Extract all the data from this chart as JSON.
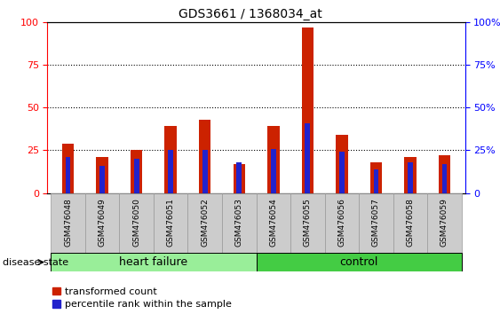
{
  "title": "GDS3661 / 1368034_at",
  "categories": [
    "GSM476048",
    "GSM476049",
    "GSM476050",
    "GSM476051",
    "GSM476052",
    "GSM476053",
    "GSM476054",
    "GSM476055",
    "GSM476056",
    "GSM476057",
    "GSM476058",
    "GSM476059"
  ],
  "red_values": [
    29,
    21,
    25,
    39,
    43,
    17,
    39,
    97,
    34,
    18,
    21,
    22
  ],
  "blue_values": [
    21,
    16,
    20,
    25,
    25,
    18,
    26,
    41,
    24,
    14,
    18,
    17
  ],
  "heart_failure_count": 6,
  "control_count": 6,
  "ylim": [
    0,
    100
  ],
  "yticks": [
    0,
    25,
    50,
    75,
    100
  ],
  "red_color": "#CC2200",
  "blue_color": "#2222CC",
  "heart_failure_color": "#99EE99",
  "control_color": "#44CC44",
  "tick_bg_color": "#CCCCCC",
  "plot_bg": "#FFFFFF",
  "legend_red": "transformed count",
  "legend_blue": "percentile rank within the sample",
  "disease_label": "disease state",
  "heart_failure_label": "heart failure",
  "control_label": "control"
}
